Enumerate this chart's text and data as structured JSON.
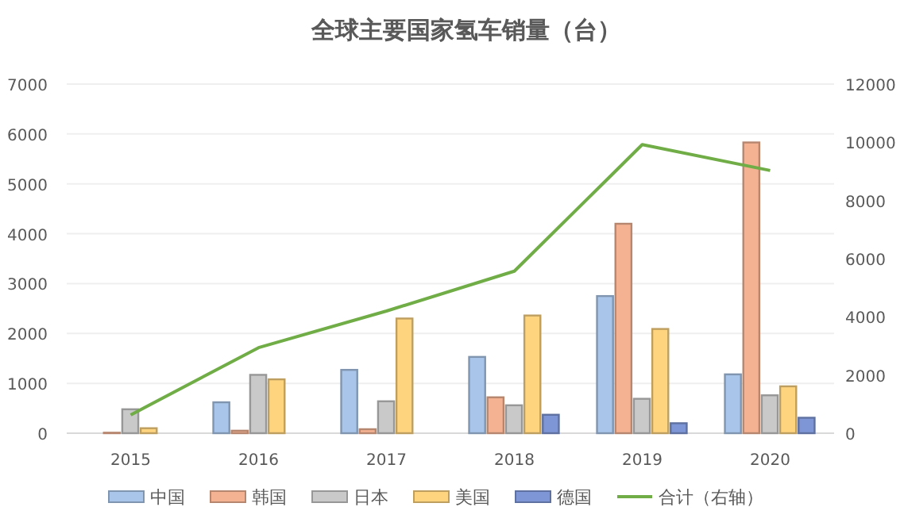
{
  "chart_data": {
    "type": "bar",
    "title": "全球主要国家氢车销量（台）",
    "categories": [
      "2015",
      "2016",
      "2017",
      "2018",
      "2019",
      "2020"
    ],
    "series": [
      {
        "name": "中国",
        "color": "#a9c6ea",
        "values": [
          null,
          620,
          1270,
          1530,
          2750,
          1180
        ]
      },
      {
        "name": "韩国",
        "color": "#f4b293",
        "values": [
          10,
          50,
          80,
          720,
          4200,
          5830
        ]
      },
      {
        "name": "日本",
        "color": "#c9c9c9",
        "values": [
          480,
          1170,
          640,
          560,
          690,
          760
        ]
      },
      {
        "name": "美国",
        "color": "#ffd47f",
        "values": [
          100,
          1080,
          2300,
          2360,
          2090,
          940
        ]
      },
      {
        "name": "德国",
        "color": "#7f96d6",
        "values": [
          null,
          null,
          null,
          370,
          200,
          310
        ]
      },
      {
        "name": "合计（右轴）",
        "color": "#70ad47",
        "type": "line",
        "axis": "y2",
        "values": [
          630,
          2940,
          4200,
          5570,
          9920,
          9030
        ]
      }
    ],
    "ylim": [
      0,
      7000
    ],
    "yticks": [
      0,
      1000,
      2000,
      3000,
      4000,
      5000,
      6000,
      7000
    ],
    "y2lim": [
      0,
      12000
    ],
    "y2ticks": [
      0,
      2000,
      4000,
      6000,
      8000,
      10000,
      12000
    ],
    "grid": "y",
    "legend": "bottom",
    "marker": "none"
  }
}
